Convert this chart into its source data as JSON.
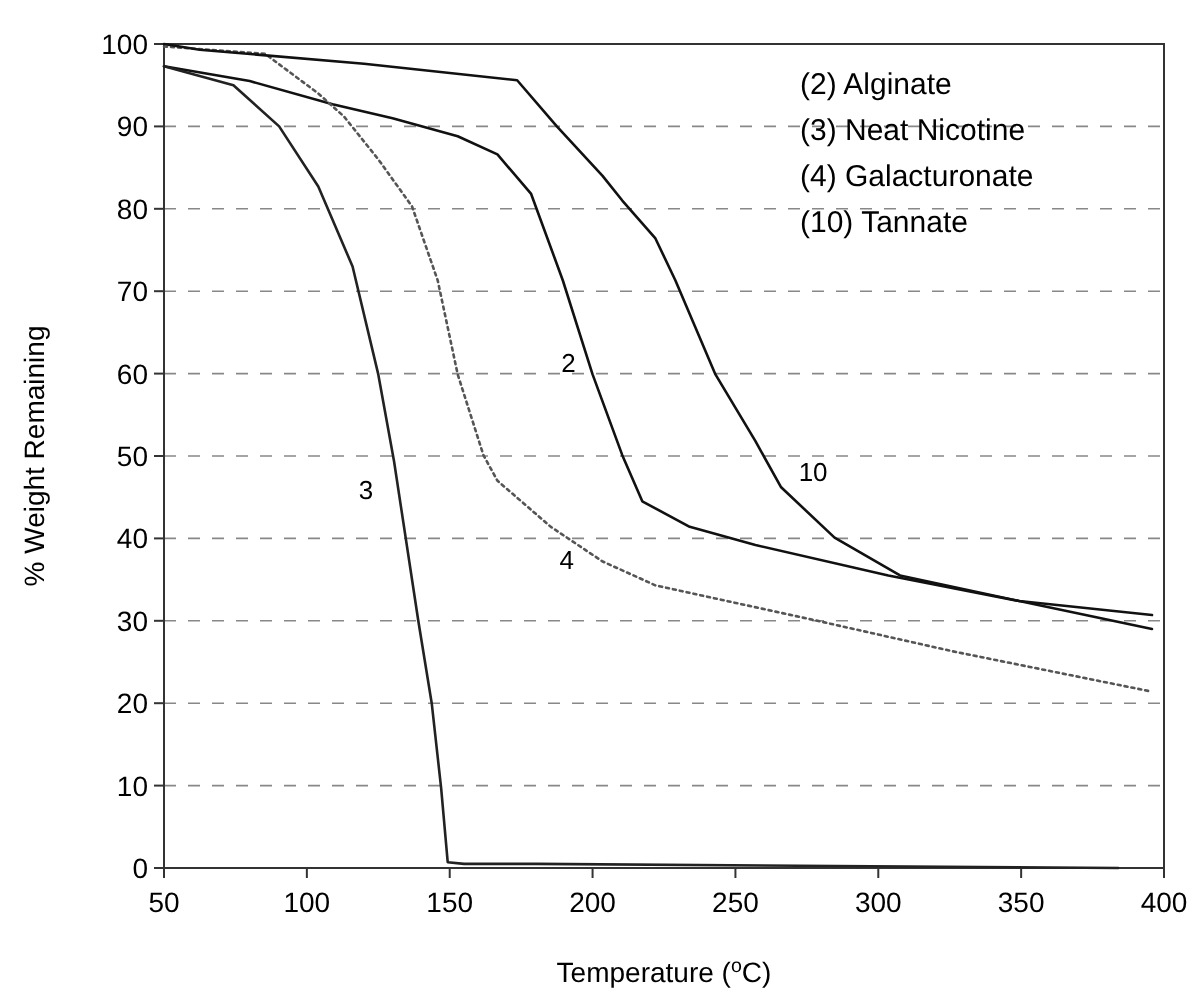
{
  "chart_data": {
    "type": "line",
    "xlabel": "Temperature ($^{o}$C)",
    "ylabel": "% Weight Remaining",
    "xlim": [
      50,
      400
    ],
    "ylim": [
      0,
      100
    ],
    "xticks": [
      50,
      100,
      150,
      200,
      250,
      300,
      350,
      400
    ],
    "yticks": [
      0,
      10,
      20,
      30,
      40,
      50,
      60,
      70,
      80,
      90,
      100
    ],
    "grid": "y",
    "marker": "none",
    "series": [
      {
        "name": "2",
        "color": "#111111",
        "line_style": "solid",
        "x": [
          50,
          80,
          109,
          130,
          152.8,
          166.7,
          178.5,
          189.6,
          200,
          210.4,
          217.4,
          234,
          257,
          303.5,
          349.3,
          395.8
        ],
        "values": [
          97.3,
          95.5,
          92.7,
          91,
          88.8,
          86.6,
          81.8,
          71.3,
          59.9,
          50.1,
          44.5,
          41.4,
          39.2,
          35.5,
          32.4,
          29
        ]
      },
      {
        "name": "3",
        "color": "#222222",
        "line_style": "solid",
        "x": [
          50,
          74.3,
          90.3,
          104,
          116,
          125,
          130.5,
          139,
          143.7,
          147,
          149.3,
          155,
          180,
          384
        ],
        "values": [
          97.3,
          95,
          90,
          82.7,
          73,
          59.9,
          49.4,
          30,
          20,
          9.7,
          0.7,
          0.5,
          0.5,
          0
        ]
      },
      {
        "name": "4",
        "color": "#555555",
        "line_style": "dotted",
        "x": [
          50,
          85.4,
          104,
          113,
          125,
          136.8,
          145.8,
          152.8,
          161.8,
          166.7,
          185.4,
          203.5,
          222,
          280,
          326,
          395.8
        ],
        "values": [
          99.7,
          98.8,
          94,
          91.2,
          86,
          80.3,
          71.3,
          59.9,
          50.1,
          47,
          41.4,
          37.2,
          34.3,
          29.9,
          26.3,
          21.4
        ]
      },
      {
        "name": "10",
        "color": "#111111",
        "line_style": "solid",
        "x": [
          50,
          62.5,
          120,
          173.6,
          187.5,
          203.5,
          210.4,
          222,
          229,
          243,
          257,
          266,
          284.7,
          307.6,
          349.3,
          395.8
        ],
        "values": [
          100,
          99.3,
          97.6,
          95.6,
          90,
          84,
          81,
          76.4,
          71.3,
          59.9,
          51.8,
          46.2,
          40.1,
          35.5,
          32.4,
          30.7
        ]
      }
    ],
    "annotations": [
      "(2) Alginate",
      "(3) Neat Nicotine",
      "(4) Galacturonate",
      "(10) Tannate"
    ]
  }
}
